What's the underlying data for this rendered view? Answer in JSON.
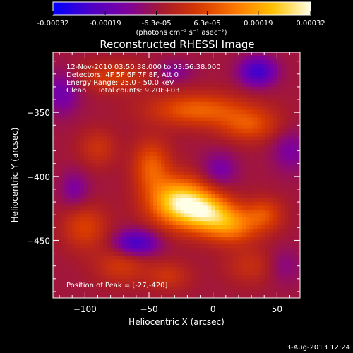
{
  "colorbar": {
    "tick_labels": [
      "-0.00032",
      "-0.00019",
      "-6.3e-05",
      "6.3e-05",
      "0.00019",
      "0.00032"
    ],
    "tick_values": [
      -0.00032,
      -0.00019,
      -6.3e-05,
      6.3e-05,
      0.00019,
      0.00032
    ],
    "unit_label": "(photons cm⁻² s⁻¹ asec⁻²)",
    "colors": [
      "#0000ff",
      "#4b00c8",
      "#7d00a0",
      "#a81a2a",
      "#d83a00",
      "#ff7a00",
      "#ffc400",
      "#ffffe8"
    ]
  },
  "chart_data": {
    "type": "heatmap",
    "title": "Reconstructed RHESSI Image",
    "xlabel": "Heliocentric X (arcsec)",
    "ylabel": "Heliocentric Y (arcsec)",
    "xlim": [
      -125,
      68
    ],
    "ylim": [
      -495,
      -303
    ],
    "x_ticks": [
      -100,
      -50,
      0,
      50
    ],
    "x_tick_labels": [
      "−100",
      "−50",
      "0",
      "50"
    ],
    "y_ticks": [
      -450,
      -400,
      -350
    ],
    "y_tick_labels": [
      "−450",
      "−400",
      "−350"
    ],
    "value_range": [
      -0.00032,
      0.00032
    ],
    "annotations": [
      "12-Nov-2010 03:50:38.000 to 03:56:38.000",
      "Detectors: 4F 5F 6F 7F 8F, Att 0",
      "Energy Range: 25.0 - 50.0 keV",
      "Clean     Total counts: 9.20E+03",
      "Position of Peak = [-27,-420]"
    ],
    "peak": {
      "x": -27,
      "y": -420
    },
    "sources": [
      {
        "x": -27,
        "y": -420,
        "sx": 16,
        "sy": 13,
        "a": 0.00032
      },
      {
        "x": -5,
        "y": -428,
        "sx": 14,
        "sy": 11,
        "a": 0.00024
      },
      {
        "x": 15,
        "y": -438,
        "sx": 14,
        "sy": 10,
        "a": 0.00019
      },
      {
        "x": 40,
        "y": -430,
        "sx": 10,
        "sy": 9,
        "a": 0.00012
      },
      {
        "x": -48,
        "y": -392,
        "sx": 10,
        "sy": 14,
        "a": 0.00015
      },
      {
        "x": -12,
        "y": -348,
        "sx": 26,
        "sy": 9,
        "a": 0.00016
      },
      {
        "x": 28,
        "y": -360,
        "sx": 16,
        "sy": 9,
        "a": 0.00013
      },
      {
        "x": -78,
        "y": -322,
        "sx": 18,
        "sy": 8,
        "a": 0.0001
      },
      {
        "x": -90,
        "y": -378,
        "sx": 10,
        "sy": 10,
        "a": 8e-05
      },
      {
        "x": -100,
        "y": -440,
        "sx": 12,
        "sy": 12,
        "a": 0.00011
      },
      {
        "x": -72,
        "y": -470,
        "sx": 14,
        "sy": 10,
        "a": 9e-05
      },
      {
        "x": -35,
        "y": -478,
        "sx": 12,
        "sy": 8,
        "a": 8e-05
      },
      {
        "x": 30,
        "y": -470,
        "sx": 14,
        "sy": 10,
        "a": 7e-05
      },
      {
        "x": -60,
        "y": -452,
        "sx": 12,
        "sy": 7,
        "a": -0.00018
      },
      {
        "x": 35,
        "y": -318,
        "sx": 10,
        "sy": 8,
        "a": -0.00018
      },
      {
        "x": -118,
        "y": -335,
        "sx": 10,
        "sy": 12,
        "a": -0.0001
      },
      {
        "x": -108,
        "y": -410,
        "sx": 8,
        "sy": 10,
        "a": -8e-05
      },
      {
        "x": 5,
        "y": -395,
        "sx": 10,
        "sy": 10,
        "a": -9e-05
      },
      {
        "x": 60,
        "y": -380,
        "sx": 10,
        "sy": 12,
        "a": -8e-05
      },
      {
        "x": -30,
        "y": -318,
        "sx": 10,
        "sy": 6,
        "a": -7e-05
      },
      {
        "x": 55,
        "y": -470,
        "sx": 10,
        "sy": 10,
        "a": -6e-05
      }
    ],
    "background": -6e-05
  },
  "footer": {
    "timestamp": "3-Aug-2013 12:24"
  }
}
